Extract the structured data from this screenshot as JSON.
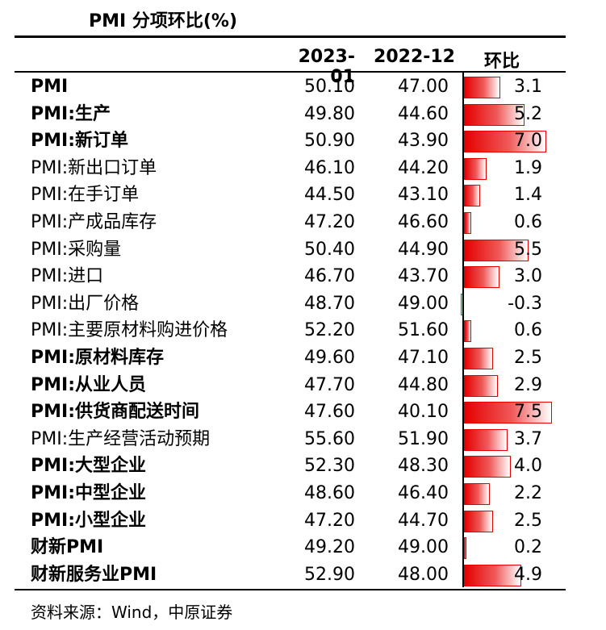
{
  "title": "PMI 分项环比(%)",
  "columns": {
    "c1": "2023-01",
    "c2": "2022-12",
    "c3": "环比"
  },
  "source": "资料来源：Wind，中原证券",
  "chart_data": {
    "type": "table",
    "title": "PMI 分项环比(%)",
    "columns": [
      "2023-01",
      "2022-12",
      "环比"
    ],
    "bar_column": "环比",
    "bar_colors": {
      "positive": "#e50000",
      "negative": "#009933"
    },
    "rows": [
      {
        "label": "PMI",
        "bold": true,
        "v2023": "50.10",
        "v2022": "47.00",
        "mom": 3.1
      },
      {
        "label": "PMI:生产",
        "bold": true,
        "v2023": "49.80",
        "v2022": "44.60",
        "mom": 5.2
      },
      {
        "label": "PMI:新订单",
        "bold": true,
        "v2023": "50.90",
        "v2022": "43.90",
        "mom": 7.0
      },
      {
        "label": "PMI:新出口订单",
        "bold": false,
        "v2023": "46.10",
        "v2022": "44.20",
        "mom": 1.9
      },
      {
        "label": "PMI:在手订单",
        "bold": false,
        "v2023": "44.50",
        "v2022": "43.10",
        "mom": 1.4
      },
      {
        "label": "PMI:产成品库存",
        "bold": false,
        "v2023": "47.20",
        "v2022": "46.60",
        "mom": 0.6
      },
      {
        "label": "PMI:采购量",
        "bold": false,
        "v2023": "50.40",
        "v2022": "44.90",
        "mom": 5.5
      },
      {
        "label": "PMI:进口",
        "bold": false,
        "v2023": "46.70",
        "v2022": "43.70",
        "mom": 3.0
      },
      {
        "label": "PMI:出厂价格",
        "bold": false,
        "v2023": "48.70",
        "v2022": "49.00",
        "mom": -0.3
      },
      {
        "label": "PMI:主要原材料购进价格",
        "bold": false,
        "v2023": "52.20",
        "v2022": "51.60",
        "mom": 0.6
      },
      {
        "label": "PMI:原材料库存",
        "bold": true,
        "v2023": "49.60",
        "v2022": "47.10",
        "mom": 2.5
      },
      {
        "label": "PMI:从业人员",
        "bold": true,
        "v2023": "47.70",
        "v2022": "44.80",
        "mom": 2.9
      },
      {
        "label": "PMI:供货商配送时间",
        "bold": true,
        "v2023": "47.60",
        "v2022": "40.10",
        "mom": 7.5
      },
      {
        "label": "PMI:生产经营活动预期",
        "bold": false,
        "v2023": "55.60",
        "v2022": "51.90",
        "mom": 3.7
      },
      {
        "label": "PMI:大型企业",
        "bold": true,
        "v2023": "52.30",
        "v2022": "48.30",
        "mom": 4.0
      },
      {
        "label": "PMI:中型企业",
        "bold": true,
        "v2023": "48.60",
        "v2022": "46.40",
        "mom": 2.2
      },
      {
        "label": "PMI:小型企业",
        "bold": true,
        "v2023": "47.20",
        "v2022": "44.70",
        "mom": 2.5
      },
      {
        "label": "财新PMI",
        "bold": true,
        "v2023": "49.20",
        "v2022": "49.00",
        "mom": 0.2
      },
      {
        "label": "财新服务业PMI",
        "bold": true,
        "v2023": "52.90",
        "v2022": "48.00",
        "mom": 4.9
      }
    ]
  }
}
